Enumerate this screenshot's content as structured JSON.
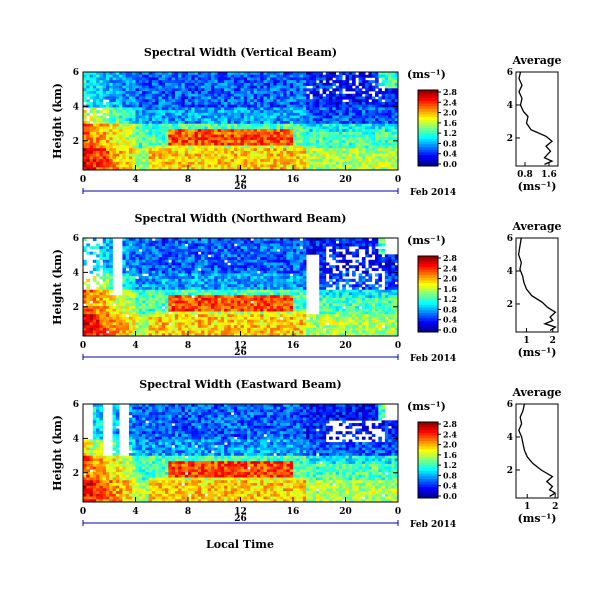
{
  "figure": {
    "x_axis_label": "Local Time",
    "date_label": "Feb 2014",
    "day_label": "26",
    "height_axis_label": "Height (km)",
    "unit_label": "(ms⁻¹)",
    "average_title": "Average",
    "x_ticks": [
      "0",
      "4",
      "8",
      "12",
      "16",
      "20",
      "0"
    ]
  },
  "chart_data": [
    {
      "type": "heatmap",
      "title": "Spectral Width (Vertical Beam)",
      "xlabel": "",
      "ylabel": "Height (km)",
      "x_range_hours": [
        0,
        24
      ],
      "y_range_km": [
        0.3,
        6
      ],
      "y_ticks": [
        "2",
        "4",
        "6"
      ],
      "colorbar": {
        "label": "(ms⁻¹)",
        "range": [
          0,
          2.8
        ],
        "ticks": [
          "2.8",
          "2.4",
          "2.0",
          "1.6",
          "1.2",
          "0.8",
          "0.4",
          "0.0"
        ]
      },
      "average_profile": {
        "title": "Average",
        "xlabel": "(ms⁻¹)",
        "x_ticks": [
          "0.8",
          "1.6"
        ],
        "y_ticks": [
          "2",
          "4",
          "6"
        ],
        "xlim": [
          0.5,
          1.9
        ],
        "ylim": [
          0.3,
          6
        ],
        "heights_km": [
          0.4,
          0.6,
          0.8,
          1.0,
          1.2,
          1.5,
          1.8,
          2.1,
          2.5,
          2.9,
          3.3,
          3.6,
          4.0,
          4.4,
          4.8,
          5.2,
          5.6,
          6.0
        ],
        "values": [
          1.45,
          1.7,
          1.45,
          1.55,
          1.65,
          1.5,
          1.7,
          1.5,
          1.0,
          0.85,
          0.9,
          0.75,
          0.65,
          0.7,
          0.6,
          0.7,
          0.6,
          0.65
        ]
      }
    },
    {
      "type": "heatmap",
      "title": "Spectral Width (Northward Beam)",
      "xlabel": "",
      "ylabel": "Height (km)",
      "x_range_hours": [
        0,
        24
      ],
      "y_range_km": [
        0.3,
        6
      ],
      "y_ticks": [
        "2",
        "4",
        "6"
      ],
      "colorbar": {
        "label": "(ms⁻¹)",
        "range": [
          0,
          2.8
        ],
        "ticks": [
          "2.8",
          "2.4",
          "2.0",
          "1.6",
          "1.2",
          "0.8",
          "0.4",
          "0.0"
        ]
      },
      "average_profile": {
        "title": "Average",
        "xlabel": "(ms⁻¹)",
        "x_ticks": [
          "1",
          "2"
        ],
        "y_ticks": [
          "2",
          "4",
          "6"
        ],
        "xlim": [
          0.6,
          2.2
        ],
        "ylim": [
          0.3,
          6
        ],
        "heights_km": [
          0.4,
          0.6,
          0.8,
          1.0,
          1.2,
          1.5,
          1.8,
          2.1,
          2.5,
          2.9,
          3.3,
          3.7,
          4.1,
          4.5,
          5.0,
          5.5,
          6.0
        ],
        "values": [
          1.9,
          2.1,
          1.7,
          2.0,
          1.9,
          2.1,
          1.8,
          1.6,
          1.2,
          1.0,
          0.9,
          0.85,
          0.75,
          0.8,
          0.7,
          0.75,
          0.8
        ]
      }
    },
    {
      "type": "heatmap",
      "title": "Spectral Width (Eastward Beam)",
      "xlabel": "Local Time",
      "ylabel": "Height (km)",
      "x_range_hours": [
        0,
        24
      ],
      "y_range_km": [
        0.3,
        6
      ],
      "y_ticks": [
        "2",
        "4",
        "6"
      ],
      "colorbar": {
        "label": "(ms⁻¹)",
        "range": [
          0,
          2.8
        ],
        "ticks": [
          "2.8",
          "2.4",
          "2.0",
          "1.6",
          "1.2",
          "0.8",
          "0.4",
          "0.0"
        ]
      },
      "average_profile": {
        "title": "Average",
        "xlabel": "(ms⁻¹)",
        "x_ticks": [
          "1",
          "2"
        ],
        "y_ticks": [
          "2",
          "4",
          "6"
        ],
        "xlim": [
          0.6,
          2.1
        ],
        "ylim": [
          0.3,
          6
        ],
        "heights_km": [
          0.4,
          0.6,
          0.8,
          1.0,
          1.3,
          1.6,
          2.0,
          2.4,
          2.8,
          3.2,
          3.6,
          4.0,
          4.4,
          4.8,
          5.2,
          5.6,
          6.0
        ],
        "values": [
          1.8,
          2.0,
          1.8,
          1.9,
          1.7,
          1.9,
          1.5,
          1.2,
          1.0,
          0.9,
          0.85,
          0.8,
          0.7,
          0.8,
          0.75,
          0.85,
          0.9
        ]
      }
    }
  ]
}
